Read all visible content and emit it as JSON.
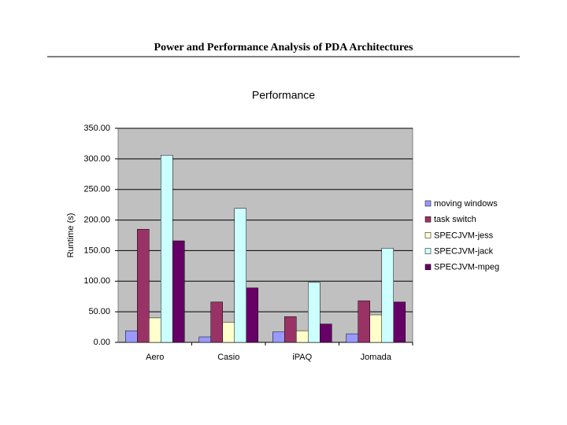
{
  "header": {
    "title": "Power and Performance Analysis of PDA Architectures"
  },
  "chart_data": {
    "type": "bar",
    "title": "Performance",
    "y_label": "Runtime (s)",
    "categories": [
      "Aero",
      "Casio",
      "iPAQ",
      "Jomada"
    ],
    "series": [
      {
        "name": "moving windows",
        "color": "#9999ff",
        "values": [
          19,
          9,
          17,
          14
        ]
      },
      {
        "name": "task switch",
        "color": "#993366",
        "values": [
          185,
          66,
          42,
          68
        ]
      },
      {
        "name": "SPECJVM-jess",
        "color": "#ffffcc",
        "values": [
          40,
          33,
          19,
          45
        ]
      },
      {
        "name": "SPECJVM-jack",
        "color": "#ccffff",
        "values": [
          306,
          219,
          98,
          154
        ]
      },
      {
        "name": "SPECJVM-mpeg",
        "color": "#660066",
        "values": [
          166,
          89,
          30,
          66
        ]
      }
    ],
    "ylim": [
      0,
      350
    ],
    "yticks": [
      {
        "value": 0,
        "label": "0.00"
      },
      {
        "value": 50,
        "label": "50.00"
      },
      {
        "value": 100,
        "label": "100.00"
      },
      {
        "value": 150,
        "label": "150.00"
      },
      {
        "value": 200,
        "label": "200.00"
      },
      {
        "value": 250,
        "label": "250.00"
      },
      {
        "value": 300,
        "label": "300.00"
      },
      {
        "value": 350,
        "label": "350.00"
      }
    ],
    "grid": true,
    "plot_background": "#c0c0c0",
    "legend": "right"
  }
}
